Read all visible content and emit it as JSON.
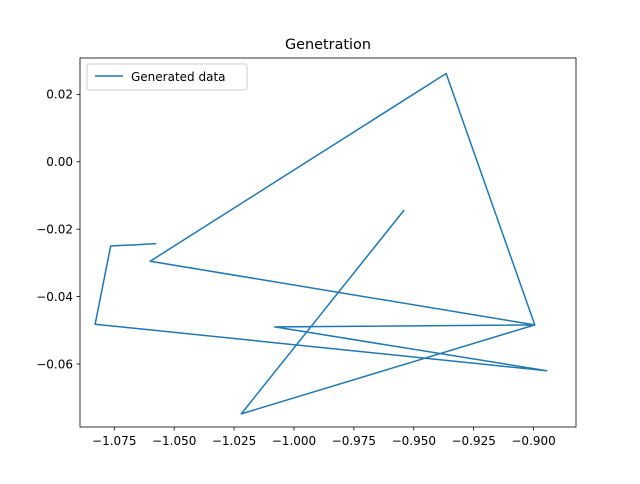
{
  "chart_data": {
    "type": "line",
    "title": "Genetration",
    "xlabel": "",
    "ylabel": "",
    "xlim": [
      -1.0893,
      -0.8823
    ],
    "ylim": [
      -0.0787,
      0.0308
    ],
    "x_ticks": [
      -1.075,
      -1.05,
      -1.025,
      -1.0,
      -0.975,
      -0.95,
      -0.925,
      -0.9
    ],
    "x_tick_labels": [
      "−1.075",
      "−1.050",
      "−1.025",
      "−1.000",
      "−0.975",
      "−0.950",
      "−0.925",
      "−0.900"
    ],
    "y_ticks": [
      -0.06,
      -0.04,
      -0.02,
      0.0,
      0.02
    ],
    "y_tick_labels": [
      "−0.06",
      "−0.04",
      "−0.02",
      "0.00",
      "0.02"
    ],
    "grid": false,
    "legend": {
      "placement": "upper-left"
    },
    "colors": {
      "series": "#1f77b4"
    },
    "series": [
      {
        "name": "Generated data",
        "x": [
          -1.0575,
          -1.0765,
          -1.083,
          -0.8945,
          -1.008,
          -0.8995,
          -1.06,
          -0.9365,
          -0.8995,
          -1.022,
          -0.954
        ],
        "y": [
          -0.0243,
          -0.025,
          -0.0482,
          -0.062,
          -0.049,
          -0.0484,
          -0.0295,
          0.0262,
          -0.0484,
          -0.0748,
          -0.0143
        ]
      }
    ]
  }
}
